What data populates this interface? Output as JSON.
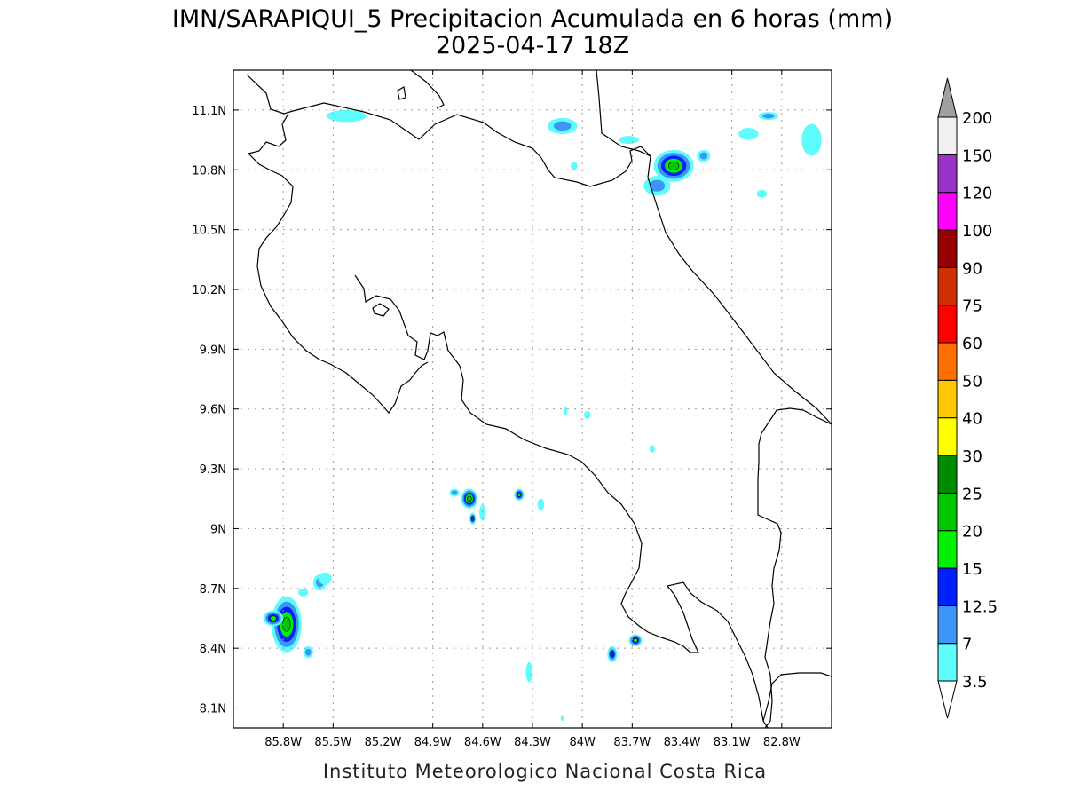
{
  "title": {
    "line1": "IMN/SARAPIQUI_5 Precipitacion Acumulada en 6 horas (mm)",
    "line2": "2025-04-17 18Z"
  },
  "footer": "Instituto Meteorologico Nacional Costa Rica",
  "map": {
    "lon_range": [
      -86.1,
      -82.5
    ],
    "lat_range": [
      8.0,
      11.3
    ],
    "lon_ticks": [
      "85.8W",
      "85.5W",
      "85.2W",
      "84.9W",
      "84.6W",
      "84.3W",
      "84W",
      "83.7W",
      "83.4W",
      "83.1W",
      "82.8W"
    ],
    "lon_tick_values": [
      -85.8,
      -85.5,
      -85.2,
      -84.9,
      -84.6,
      -84.3,
      -84.0,
      -83.7,
      -83.4,
      -83.1,
      -82.8
    ],
    "lat_ticks": [
      "8.1N",
      "8.4N",
      "8.7N",
      "9N",
      "9.3N",
      "9.6N",
      "9.9N",
      "10.2N",
      "10.5N",
      "10.8N",
      "11.1N"
    ],
    "lat_tick_values": [
      8.1,
      8.4,
      8.7,
      9.0,
      9.3,
      9.6,
      9.9,
      10.2,
      10.5,
      10.8,
      11.1
    ],
    "grid": true
  },
  "colorbar": {
    "labels": [
      "3.5",
      "7",
      "12.5",
      "15",
      "20",
      "25",
      "30",
      "40",
      "50",
      "60",
      "75",
      "90",
      "100",
      "120",
      "150",
      "200"
    ],
    "colors": [
      "#5ffcfc",
      "#3c96f5",
      "#0020ff",
      "#00f000",
      "#00c800",
      "#008c00",
      "#ffff00",
      "#ffc800",
      "#ff6e00",
      "#ff0000",
      "#d03000",
      "#960000",
      "#ff00ff",
      "#9b32c8",
      "#f0f0f0"
    ],
    "under_color": "#ffffff",
    "over_color": "#a0a0a0"
  },
  "precip_cells": [
    {
      "lon": -85.78,
      "lat": 8.52,
      "rx": 0.09,
      "ry": 0.14,
      "level": 4
    },
    {
      "lon": -85.86,
      "lat": 8.55,
      "rx": 0.06,
      "ry": 0.04,
      "level": 3
    },
    {
      "lon": -85.58,
      "lat": 8.73,
      "rx": 0.04,
      "ry": 0.04,
      "level": 1
    },
    {
      "lon": -85.68,
      "lat": 8.68,
      "rx": 0.03,
      "ry": 0.02,
      "level": 0
    },
    {
      "lon": -85.65,
      "lat": 8.38,
      "rx": 0.03,
      "ry": 0.03,
      "level": 1
    },
    {
      "lon": -85.55,
      "lat": 8.75,
      "rx": 0.04,
      "ry": 0.03,
      "level": 0
    },
    {
      "lon": -84.68,
      "lat": 9.15,
      "rx": 0.05,
      "ry": 0.05,
      "level": 4
    },
    {
      "lon": -84.66,
      "lat": 9.05,
      "rx": 0.02,
      "ry": 0.03,
      "level": 2
    },
    {
      "lon": -84.77,
      "lat": 9.18,
      "rx": 0.03,
      "ry": 0.02,
      "level": 1
    },
    {
      "lon": -84.6,
      "lat": 9.08,
      "rx": 0.02,
      "ry": 0.04,
      "level": 0
    },
    {
      "lon": -84.38,
      "lat": 9.17,
      "rx": 0.03,
      "ry": 0.03,
      "level": 3
    },
    {
      "lon": -84.25,
      "lat": 9.12,
      "rx": 0.02,
      "ry": 0.03,
      "level": 0
    },
    {
      "lon": -84.32,
      "lat": 8.28,
      "rx": 0.02,
      "ry": 0.05,
      "level": 0
    },
    {
      "lon": -83.82,
      "lat": 8.37,
      "rx": 0.03,
      "ry": 0.04,
      "level": 2
    },
    {
      "lon": -83.68,
      "lat": 8.44,
      "rx": 0.04,
      "ry": 0.03,
      "level": 3
    },
    {
      "lon": -83.45,
      "lat": 10.82,
      "rx": 0.12,
      "ry": 0.08,
      "level": 4
    },
    {
      "lon": -83.55,
      "lat": 10.72,
      "rx": 0.08,
      "ry": 0.05,
      "level": 1
    },
    {
      "lon": -83.27,
      "lat": 10.87,
      "rx": 0.04,
      "ry": 0.03,
      "level": 1
    },
    {
      "lon": -83.72,
      "lat": 10.95,
      "rx": 0.06,
      "ry": 0.02,
      "level": 0
    },
    {
      "lon": -84.12,
      "lat": 11.02,
      "rx": 0.09,
      "ry": 0.04,
      "level": 1
    },
    {
      "lon": -85.42,
      "lat": 11.07,
      "rx": 0.12,
      "ry": 0.03,
      "level": 0
    },
    {
      "lon": -82.88,
      "lat": 11.07,
      "rx": 0.06,
      "ry": 0.02,
      "level": 1
    },
    {
      "lon": -82.62,
      "lat": 10.95,
      "rx": 0.06,
      "ry": 0.08,
      "level": 0
    },
    {
      "lon": -83.0,
      "lat": 10.98,
      "rx": 0.06,
      "ry": 0.03,
      "level": 0
    },
    {
      "lon": -82.92,
      "lat": 10.68,
      "rx": 0.03,
      "ry": 0.02,
      "level": 0
    },
    {
      "lon": -84.05,
      "lat": 10.82,
      "rx": 0.02,
      "ry": 0.02,
      "level": 0
    },
    {
      "lon": -84.1,
      "lat": 9.59,
      "rx": 0.01,
      "ry": 0.02,
      "level": 0
    },
    {
      "lon": -83.97,
      "lat": 9.57,
      "rx": 0.02,
      "ry": 0.02,
      "level": 0
    },
    {
      "lon": -83.58,
      "lat": 9.4,
      "rx": 0.015,
      "ry": 0.02,
      "level": 0
    },
    {
      "lon": -84.12,
      "lat": 8.05,
      "rx": 0.01,
      "ry": 0.015,
      "level": 0
    }
  ]
}
